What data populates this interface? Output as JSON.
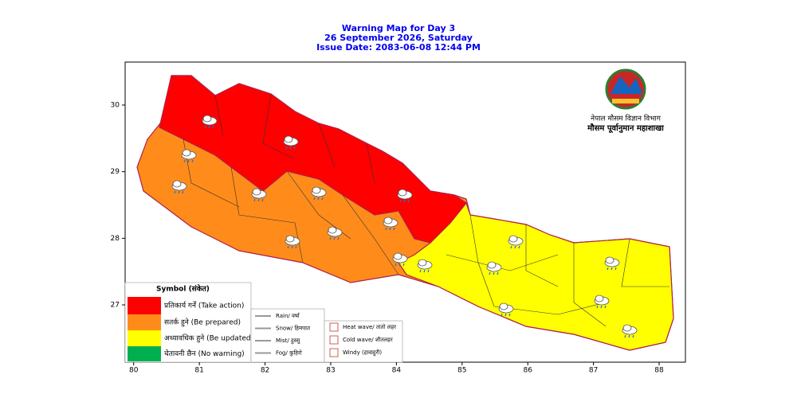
{
  "title": {
    "line1": "Warning Map for Day 3",
    "line2": "26 September 2026, Saturday",
    "line3": "Issue Date: 2083-06-08 12:44 PM"
  },
  "map": {
    "xlim": [
      79.87,
      88.4
    ],
    "ylim": [
      26.14,
      30.645
    ],
    "xticks": [
      80,
      81,
      82,
      83,
      84,
      85,
      86,
      87,
      88
    ],
    "yticks": [
      27,
      28,
      29,
      30
    ]
  },
  "logo": {
    "line1": "नेपाल मौसम विज्ञान विभाग",
    "line2": "मौसम पूर्वानुमान महाशाखा"
  },
  "legend": {
    "title": "Symbol (संकेत)",
    "items": [
      {
        "label": "प्रतिकार्य गर्नें (Take action)",
        "color": "#ff0000"
      },
      {
        "label": "सतर्क हुने (Be prepared)",
        "color": "#ff8c1a"
      },
      {
        "label": "अध्यावधिक हुने (Be updated)",
        "color": "#ffff00"
      },
      {
        "label": "चेतावनी छैन (No warning)",
        "color": "#00b050"
      }
    ]
  },
  "symbols": {
    "weather": [
      "Rain/ वर्षा",
      "Snow/ हिमपात",
      "Mist/ हुस्सु",
      "Fog/ कुहिरो"
    ],
    "hazard": [
      "Heat wave/ तातो लहर",
      "Cold wave/ शीतलहर",
      "Windy (हावाहुरी)"
    ]
  }
}
